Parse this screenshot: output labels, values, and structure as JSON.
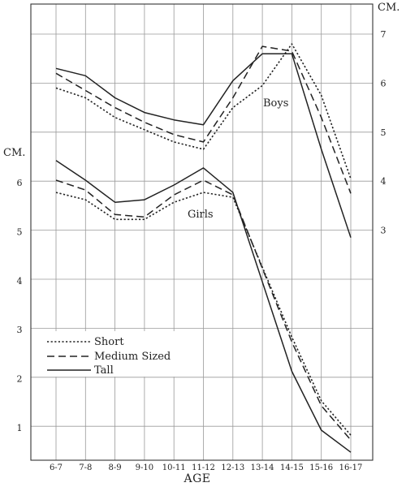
{
  "chart_data": {
    "type": "line",
    "xlabel": "AGE",
    "categories": [
      "6-7",
      "7-8",
      "8-9",
      "9-10",
      "10-11",
      "11-12",
      "12-13",
      "13-14",
      "14-15",
      "15-16",
      "16-17"
    ],
    "left_axis": {
      "unit": "CM.",
      "ticks": [
        1,
        2,
        3,
        4,
        5,
        6
      ],
      "range": [
        0.5,
        6.5
      ]
    },
    "right_axis": {
      "unit": "CM.",
      "ticks": [
        3,
        4,
        5,
        6,
        7
      ],
      "range": [
        2.5,
        7.5
      ]
    },
    "grid": true,
    "legend": {
      "placement": "bottom-left",
      "entries": [
        {
          "label": "Short",
          "style": "dotted"
        },
        {
          "label": "Medium Sized",
          "style": "dashed"
        },
        {
          "label": "Tall",
          "style": "solid"
        }
      ]
    },
    "groups": [
      {
        "label": "Boys",
        "axis": "right",
        "series": [
          {
            "name": "Short",
            "style": "dotted",
            "values": [
              5.9,
              5.7,
              5.3,
              5.05,
              4.8,
              4.65,
              5.5,
              5.95,
              6.8,
              5.75,
              4.05
            ]
          },
          {
            "name": "Medium Sized",
            "style": "dashed",
            "values": [
              6.2,
              5.85,
              5.5,
              5.2,
              4.95,
              4.8,
              5.7,
              6.75,
              6.65,
              5.3,
              3.75
            ]
          },
          {
            "name": "Tall",
            "style": "solid",
            "values": [
              6.3,
              6.15,
              5.7,
              5.4,
              5.25,
              5.15,
              6.05,
              6.6,
              6.6,
              4.65,
              2.85
            ]
          }
        ]
      },
      {
        "label": "Girls",
        "axis": "left",
        "series": [
          {
            "name": "Short",
            "style": "dotted",
            "values": [
              5.8,
              5.65,
              5.25,
              5.25,
              5.6,
              5.8,
              5.7,
              2.85,
              1.55,
              0.85
            ]
          },
          {
            "name": "Medium Sized",
            "style": "dashed",
            "values": [
              6.05,
              5.85,
              5.35,
              5.3,
              5.75,
              6.05,
              5.75,
              2.75,
              1.45,
              0.75
            ]
          },
          {
            "name": "Tall",
            "style": "solid",
            "values": [
              6.45,
              6.05,
              5.6,
              5.65,
              5.95,
              6.3,
              5.8,
              2.15,
              0.95,
              0.5
            ]
          }
        ]
      }
    ],
    "girls_x": [
      "6-7",
      "7-8",
      "8-9",
      "9-10",
      "10-11",
      "11-12",
      "12-13",
      "14-15",
      "15-16",
      "16-17"
    ]
  }
}
